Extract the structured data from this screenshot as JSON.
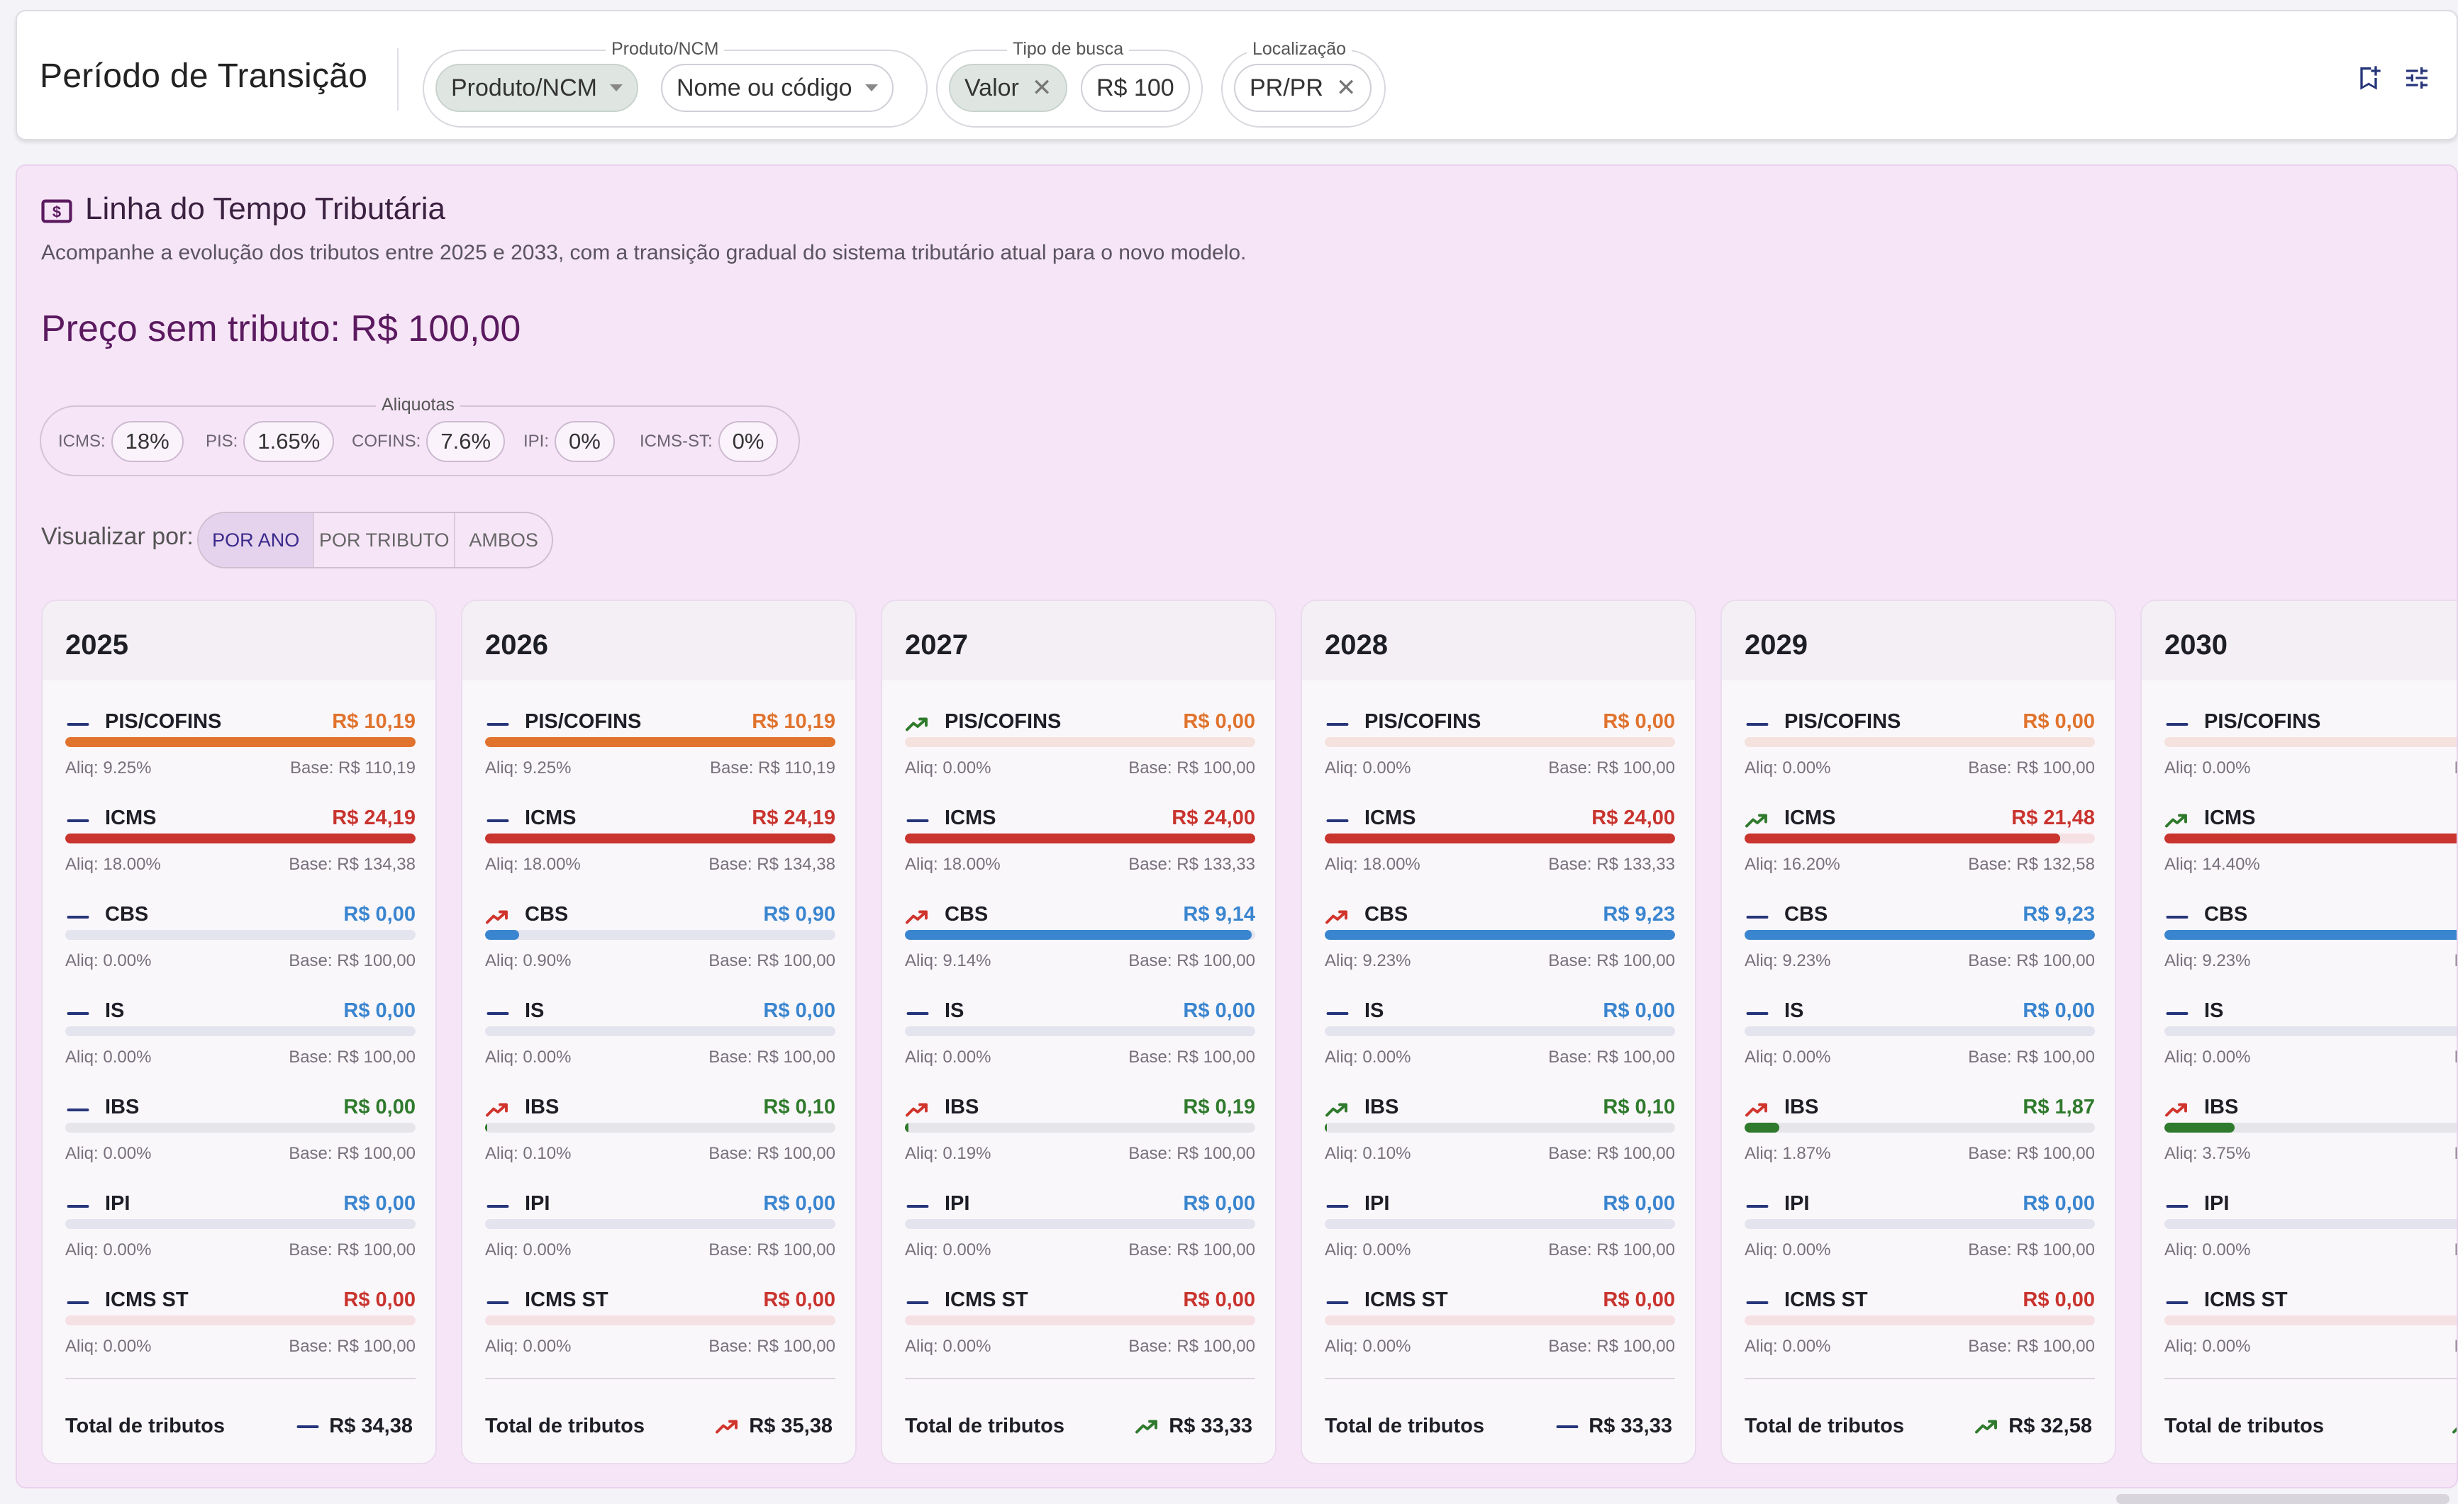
{
  "header": {
    "title": "Período de Transição",
    "produto_group_label": "Produto/NCM",
    "produto_type_chip": "Produto/NCM",
    "produto_search_chip": "Nome ou código",
    "busca_group_label": "Tipo de busca",
    "busca_type_chip": "Valor",
    "busca_value_chip": "R$ 100",
    "local_group_label": "Localização",
    "local_chip": "PR/PR"
  },
  "section": {
    "title": "Linha do Tempo Tributária",
    "description": "Acompanhe a evolução dos tributos entre 2025 e 2033, com a transição gradual do sistema tributário atual para o novo modelo.",
    "price_label": "Preço sem tributo: R$ 100,00"
  },
  "aliquotas": {
    "label": "Aliquotas",
    "items": [
      {
        "name": "ICMS:",
        "value": "18%"
      },
      {
        "name": "PIS:",
        "value": "1.65%"
      },
      {
        "name": "COFINS:",
        "value": "7.6%"
      },
      {
        "name": "IPI:",
        "value": "0%"
      },
      {
        "name": "ICMS-ST:",
        "value": "0%"
      }
    ]
  },
  "view": {
    "label": "Visualizar por:",
    "options": [
      "POR ANO",
      "POR TRIBUTO",
      "AMBOS"
    ],
    "selected": "POR ANO"
  },
  "colors": {
    "orange": "#e0732e",
    "red": "#c9342e",
    "blue": "#3a85cf",
    "green": "#2f7a2c",
    "flat_icon": "#27367a",
    "up_icon": "#d0342c",
    "down_icon": "#2f7a2c"
  },
  "total_label": "Total de tributos",
  "years": [
    {
      "year": "2025",
      "total": "R$ 34,38",
      "total_trend": "flat",
      "taxes": [
        {
          "name": "PIS/COFINS",
          "value": "R$ 10,19",
          "color": "orange",
          "trend": "flat",
          "fill": 1.0,
          "aliq": "Aliq: 9.25%",
          "base": "Base: R$ 110,19"
        },
        {
          "name": "ICMS",
          "value": "R$ 24,19",
          "color": "red",
          "trend": "flat",
          "fill": 1.0,
          "aliq": "Aliq: 18.00%",
          "base": "Base: R$ 134,38"
        },
        {
          "name": "CBS",
          "value": "R$ 0,00",
          "color": "blue",
          "trend": "flat",
          "fill": 0,
          "aliq": "Aliq: 0.00%",
          "base": "Base: R$ 100,00"
        },
        {
          "name": "IS",
          "value": "R$ 0,00",
          "color": "blue",
          "trend": "flat",
          "fill": 0,
          "aliq": "Aliq: 0.00%",
          "base": "Base: R$ 100,00"
        },
        {
          "name": "IBS",
          "value": "R$ 0,00",
          "color": "green",
          "trend": "flat",
          "fill": 0,
          "aliq": "Aliq: 0.00%",
          "base": "Base: R$ 100,00"
        },
        {
          "name": "IPI",
          "value": "R$ 0,00",
          "color": "blue",
          "trend": "flat",
          "fill": 0,
          "aliq": "Aliq: 0.00%",
          "base": "Base: R$ 100,00"
        },
        {
          "name": "ICMS ST",
          "value": "R$ 0,00",
          "color": "red",
          "trend": "flat",
          "fill": 0,
          "aliq": "Aliq: 0.00%",
          "base": "Base: R$ 100,00"
        }
      ]
    },
    {
      "year": "2026",
      "total": "R$ 35,38",
      "total_trend": "up",
      "taxes": [
        {
          "name": "PIS/COFINS",
          "value": "R$ 10,19",
          "color": "orange",
          "trend": "flat",
          "fill": 1.0,
          "aliq": "Aliq: 9.25%",
          "base": "Base: R$ 110,19"
        },
        {
          "name": "ICMS",
          "value": "R$ 24,19",
          "color": "red",
          "trend": "flat",
          "fill": 1.0,
          "aliq": "Aliq: 18.00%",
          "base": "Base: R$ 134,38"
        },
        {
          "name": "CBS",
          "value": "R$ 0,90",
          "color": "blue",
          "trend": "up",
          "fill": 0.098,
          "aliq": "Aliq: 0.90%",
          "base": "Base: R$ 100,00"
        },
        {
          "name": "IS",
          "value": "R$ 0,00",
          "color": "blue",
          "trend": "flat",
          "fill": 0,
          "aliq": "Aliq: 0.00%",
          "base": "Base: R$ 100,00"
        },
        {
          "name": "IBS",
          "value": "R$ 0,10",
          "color": "green",
          "trend": "up",
          "fill": 0.006,
          "aliq": "Aliq: 0.10%",
          "base": "Base: R$ 100,00"
        },
        {
          "name": "IPI",
          "value": "R$ 0,00",
          "color": "blue",
          "trend": "flat",
          "fill": 0,
          "aliq": "Aliq: 0.00%",
          "base": "Base: R$ 100,00"
        },
        {
          "name": "ICMS ST",
          "value": "R$ 0,00",
          "color": "red",
          "trend": "flat",
          "fill": 0,
          "aliq": "Aliq: 0.00%",
          "base": "Base: R$ 100,00"
        }
      ]
    },
    {
      "year": "2027",
      "total": "R$ 33,33",
      "total_trend": "down",
      "taxes": [
        {
          "name": "PIS/COFINS",
          "value": "R$ 0,00",
          "color": "orange",
          "trend": "down",
          "fill": 0,
          "aliq": "Aliq: 0.00%",
          "base": "Base: R$ 100,00"
        },
        {
          "name": "ICMS",
          "value": "R$ 24,00",
          "color": "red",
          "trend": "flat",
          "fill": 1.0,
          "aliq": "Aliq: 18.00%",
          "base": "Base: R$ 133,33"
        },
        {
          "name": "CBS",
          "value": "R$ 9,14",
          "color": "blue",
          "trend": "up",
          "fill": 0.99,
          "aliq": "Aliq: 9.14%",
          "base": "Base: R$ 100,00"
        },
        {
          "name": "IS",
          "value": "R$ 0,00",
          "color": "blue",
          "trend": "flat",
          "fill": 0,
          "aliq": "Aliq: 0.00%",
          "base": "Base: R$ 100,00"
        },
        {
          "name": "IBS",
          "value": "R$ 0,19",
          "color": "green",
          "trend": "up",
          "fill": 0.01,
          "aliq": "Aliq: 0.19%",
          "base": "Base: R$ 100,00"
        },
        {
          "name": "IPI",
          "value": "R$ 0,00",
          "color": "blue",
          "trend": "flat",
          "fill": 0,
          "aliq": "Aliq: 0.00%",
          "base": "Base: R$ 100,00"
        },
        {
          "name": "ICMS ST",
          "value": "R$ 0,00",
          "color": "red",
          "trend": "flat",
          "fill": 0,
          "aliq": "Aliq: 0.00%",
          "base": "Base: R$ 100,00"
        }
      ]
    },
    {
      "year": "2028",
      "total": "R$ 33,33",
      "total_trend": "flat",
      "taxes": [
        {
          "name": "PIS/COFINS",
          "value": "R$ 0,00",
          "color": "orange",
          "trend": "flat",
          "fill": 0,
          "aliq": "Aliq: 0.00%",
          "base": "Base: R$ 100,00"
        },
        {
          "name": "ICMS",
          "value": "R$ 24,00",
          "color": "red",
          "trend": "flat",
          "fill": 1.0,
          "aliq": "Aliq: 18.00%",
          "base": "Base: R$ 133,33"
        },
        {
          "name": "CBS",
          "value": "R$ 9,23",
          "color": "blue",
          "trend": "up",
          "fill": 1.0,
          "aliq": "Aliq: 9.23%",
          "base": "Base: R$ 100,00"
        },
        {
          "name": "IS",
          "value": "R$ 0,00",
          "color": "blue",
          "trend": "flat",
          "fill": 0,
          "aliq": "Aliq: 0.00%",
          "base": "Base: R$ 100,00"
        },
        {
          "name": "IBS",
          "value": "R$ 0,10",
          "color": "green",
          "trend": "down",
          "fill": 0.006,
          "aliq": "Aliq: 0.10%",
          "base": "Base: R$ 100,00"
        },
        {
          "name": "IPI",
          "value": "R$ 0,00",
          "color": "blue",
          "trend": "flat",
          "fill": 0,
          "aliq": "Aliq: 0.00%",
          "base": "Base: R$ 100,00"
        },
        {
          "name": "ICMS ST",
          "value": "R$ 0,00",
          "color": "red",
          "trend": "flat",
          "fill": 0,
          "aliq": "Aliq: 0.00%",
          "base": "Base: R$ 100,00"
        }
      ]
    },
    {
      "year": "2029",
      "total": "R$ 32,58",
      "total_trend": "down",
      "taxes": [
        {
          "name": "PIS/COFINS",
          "value": "R$ 0,00",
          "color": "orange",
          "trend": "flat",
          "fill": 0,
          "aliq": "Aliq: 0.00%",
          "base": "Base: R$ 100,00"
        },
        {
          "name": "ICMS",
          "value": "R$ 21,48",
          "color": "red",
          "trend": "down",
          "fill": 0.9,
          "aliq": "Aliq: 16.20%",
          "base": "Base: R$ 132,58"
        },
        {
          "name": "CBS",
          "value": "R$ 9,23",
          "color": "blue",
          "trend": "flat",
          "fill": 1.0,
          "aliq": "Aliq: 9.23%",
          "base": "Base: R$ 100,00"
        },
        {
          "name": "IS",
          "value": "R$ 0,00",
          "color": "blue",
          "trend": "flat",
          "fill": 0,
          "aliq": "Aliq: 0.00%",
          "base": "Base: R$ 100,00"
        },
        {
          "name": "IBS",
          "value": "R$ 1,87",
          "color": "green",
          "trend": "up",
          "fill": 0.1,
          "aliq": "Aliq: 1.87%",
          "base": "Base: R$ 100,00"
        },
        {
          "name": "IPI",
          "value": "R$ 0,00",
          "color": "blue",
          "trend": "flat",
          "fill": 0,
          "aliq": "Aliq: 0.00%",
          "base": "Base: R$ 100,00"
        },
        {
          "name": "ICMS ST",
          "value": "R$ 0,00",
          "color": "red",
          "trend": "flat",
          "fill": 0,
          "aliq": "Aliq: 0.00%",
          "base": "Base: R$ 100,00"
        }
      ]
    },
    {
      "year": "2030",
      "total": "R$",
      "total_trend": "down",
      "taxes": [
        {
          "name": "PIS/COFINS",
          "value": "",
          "color": "orange",
          "trend": "flat",
          "fill": 0,
          "aliq": "Aliq: 0.00%",
          "base": "Base: R"
        },
        {
          "name": "ICMS",
          "value": "R",
          "color": "red",
          "trend": "down",
          "fill": 1.0,
          "aliq": "Aliq: 14.40%",
          "base": "Base:"
        },
        {
          "name": "CBS",
          "value": "",
          "color": "blue",
          "trend": "flat",
          "fill": 1.0,
          "aliq": "Aliq: 9.23%",
          "base": "Base: R"
        },
        {
          "name": "IS",
          "value": "",
          "color": "blue",
          "trend": "flat",
          "fill": 0,
          "aliq": "Aliq: 0.00%",
          "base": "Base: R"
        },
        {
          "name": "IBS",
          "value": "",
          "color": "green",
          "trend": "up",
          "fill": 0.2,
          "aliq": "Aliq: 3.75%",
          "base": "Base: R"
        },
        {
          "name": "IPI",
          "value": "",
          "color": "blue",
          "trend": "flat",
          "fill": 0,
          "aliq": "Aliq: 0.00%",
          "base": "Base: R"
        },
        {
          "name": "ICMS ST",
          "value": "",
          "color": "red",
          "trend": "flat",
          "fill": 0,
          "aliq": "Aliq: 0.00%",
          "base": "Base: R"
        }
      ]
    }
  ]
}
